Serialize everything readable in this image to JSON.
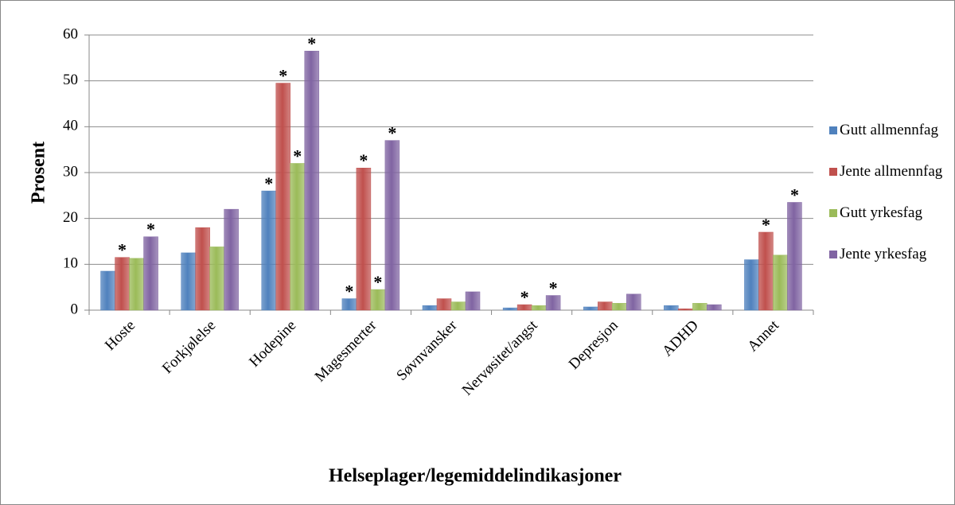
{
  "chart_data": {
    "type": "bar",
    "ylabel": "Prosent",
    "xlabel": "Helseplager/legemiddelindikasjoner",
    "categories": [
      "Hoste",
      "Forkjølelse",
      "Hodepine",
      "Magesmerter",
      "Søvnvansker",
      "Nervøsitet/angst",
      "Depresjon",
      "ADHD",
      "Annet"
    ],
    "series": [
      {
        "name": "Gutt allmennfag",
        "color": "#4f81bd",
        "values": [
          8.5,
          12.5,
          26,
          2.5,
          1,
          0.5,
          0.7,
          1,
          11
        ],
        "annotations": [
          null,
          null,
          "*",
          "*",
          null,
          null,
          null,
          null,
          null
        ]
      },
      {
        "name": "Jente allmennfag",
        "color": "#c0504d",
        "values": [
          11.5,
          18,
          49.5,
          31,
          2.5,
          1.2,
          1.8,
          0.3,
          17
        ],
        "annotations": [
          "*",
          null,
          "*",
          "*",
          null,
          "*",
          null,
          null,
          "*"
        ]
      },
      {
        "name": "Gutt yrkesfag",
        "color": "#9bbb59",
        "values": [
          11.3,
          13.8,
          32,
          4.5,
          1.8,
          1,
          1.5,
          1.5,
          12
        ],
        "annotations": [
          null,
          null,
          "*",
          "*",
          null,
          null,
          null,
          null,
          null
        ]
      },
      {
        "name": "Jente yrkesfag",
        "color": "#8064a2",
        "values": [
          16,
          22,
          56.5,
          37,
          4,
          3.2,
          3.5,
          1.2,
          23.5
        ],
        "annotations": [
          "*",
          null,
          "*",
          "*",
          null,
          "*",
          null,
          null,
          "*"
        ]
      }
    ],
    "ylim": [
      0,
      60
    ],
    "yticks": [
      0,
      10,
      20,
      30,
      40,
      50,
      60
    ],
    "grid": true,
    "legend": "right"
  }
}
